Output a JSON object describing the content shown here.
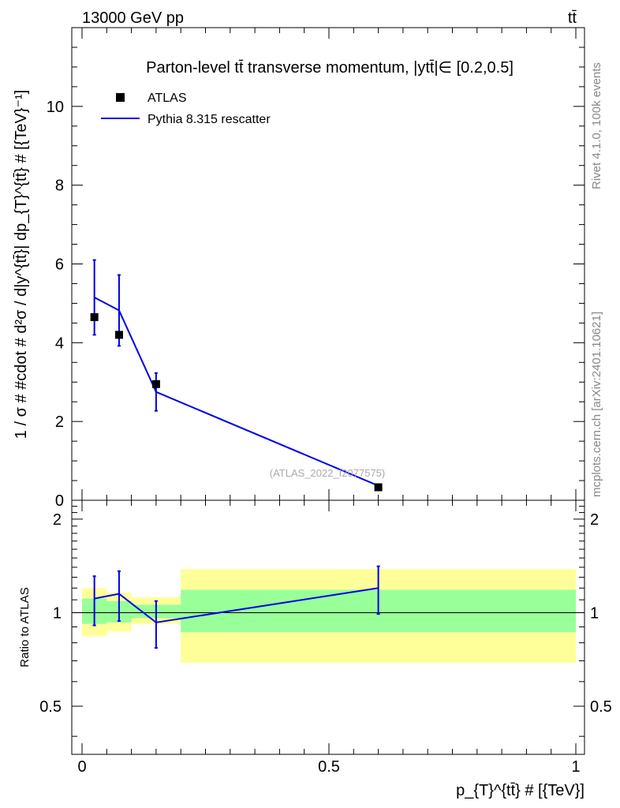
{
  "header": {
    "energy_label": "13000 GeV pp",
    "process_label": "tt̄"
  },
  "side_labels": {
    "rivet": "Rivet 4.1.0,  100k events",
    "source": "mcplots.cern.ch [arXiv:2401.10621]"
  },
  "colors": {
    "data_marker": "#000000",
    "mc_line": "#0000e6",
    "band_inner": "#99ff99",
    "band_outer": "#ffff99"
  },
  "chart_data": [
    {
      "type": "scatter",
      "title": "Parton-level tt̄ transverse momentum, |ytt̄|∈ [0.2,0.5]",
      "xlabel": "p_{T}^{tt̄} # [{TeV}]",
      "ylabel": "1 / σ # #cdot # d²σ / d|y^{tt̄}| dp_{T}^{tt̄} # [{TeV}⁻¹]",
      "watermark": "(ATLAS_2022_I2077575)",
      "xlim": [
        0,
        1
      ],
      "ylim": [
        0,
        12
      ],
      "yticks": [
        "0",
        "2",
        "4",
        "6",
        "8",
        "10"
      ],
      "legend": {
        "position": "top-left",
        "entries": [
          "ATLAS",
          "Pythia 8.315 rescatter"
        ]
      },
      "series": [
        {
          "name": "ATLAS",
          "x": [
            0.025,
            0.075,
            0.15,
            0.6
          ],
          "y": [
            4.65,
            4.2,
            2.95,
            0.33
          ]
        },
        {
          "name": "Pythia 8.315 rescatter",
          "x": [
            0.025,
            0.075,
            0.15,
            0.6
          ],
          "y": [
            5.15,
            4.82,
            2.75,
            0.37
          ],
          "yerr_low": [
            0.95,
            0.9,
            0.48,
            0.04
          ],
          "yerr_high": [
            0.95,
            0.9,
            0.48,
            0.04
          ]
        }
      ]
    },
    {
      "type": "line",
      "ylabel": "Ratio to ATLAS",
      "xlim": [
        0,
        1
      ],
      "ylim": [
        0.35,
        2.3
      ],
      "ytick_labels": [
        "0.5",
        "1",
        "2"
      ],
      "xtick_labels": [
        "0",
        "0.5",
        "1"
      ],
      "bands": [
        {
          "x_low": 0.0,
          "x_high": 0.05,
          "inner": [
            0.92,
            1.11
          ],
          "outer": [
            0.84,
            1.2
          ]
        },
        {
          "x_low": 0.05,
          "x_high": 0.1,
          "inner": [
            0.93,
            1.09
          ],
          "outer": [
            0.87,
            1.16
          ]
        },
        {
          "x_low": 0.1,
          "x_high": 0.2,
          "inner": [
            0.96,
            1.06
          ],
          "outer": [
            0.92,
            1.12
          ]
        },
        {
          "x_low": 0.2,
          "x_high": 1.0,
          "inner": [
            0.865,
            1.185
          ],
          "outer": [
            0.69,
            1.38
          ]
        }
      ],
      "series": [
        {
          "name": "Pythia 8.315 rescatter",
          "x": [
            0.025,
            0.075,
            0.15,
            0.6
          ],
          "y": [
            1.11,
            1.15,
            0.93,
            1.2
          ],
          "yerr_low": [
            0.2,
            0.21,
            0.16,
            0.21
          ],
          "yerr_high": [
            0.2,
            0.21,
            0.16,
            0.21
          ]
        }
      ]
    }
  ]
}
